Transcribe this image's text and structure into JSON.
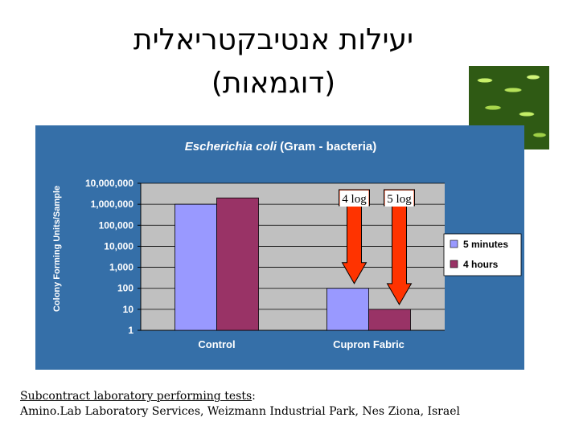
{
  "slide": {
    "title_line1": "יעילות אנטיבקטריאלית",
    "title_line2": "(דוגמאות)"
  },
  "footer": {
    "label": "Subcontract laboratory performing tests",
    "colon": ":",
    "text": "Amino.Lab Laboratory Services, Weizmann Industrial Park, Nes Ziona, Israel"
  },
  "chart_data": {
    "type": "bar",
    "title": "Escherichia coli",
    "subtitle": "(Gram - bacteria)",
    "xlabel": "",
    "ylabel": "Colony Forming Units/Sample",
    "yscale": "log",
    "ylim": [
      1,
      10000000
    ],
    "yticks": [
      "1",
      "10",
      "100",
      "1,000",
      "10,000",
      "100,000",
      "1,000,000",
      "10,000,000"
    ],
    "categories": [
      "Control",
      "Cupron Fabric"
    ],
    "series": [
      {
        "name": "5 minutes",
        "color": "#9999ff",
        "values": [
          1000000,
          100
        ]
      },
      {
        "name": "4 hours",
        "color": "#993366",
        "values": [
          2000000,
          10
        ]
      }
    ],
    "legend_position": "right",
    "annotations": [
      {
        "text": "4 log",
        "arrow_color": "#ff3300"
      },
      {
        "text": "5 log",
        "arrow_color": "#ff3300"
      }
    ],
    "plot_background": "#c0c0c0",
    "chart_background": "#356fa8"
  }
}
